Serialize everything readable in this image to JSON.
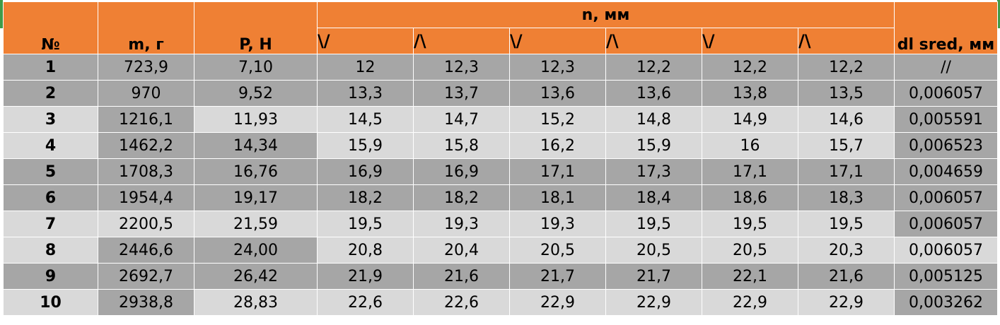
{
  "headers": {
    "no": "№",
    "mass": "m, г",
    "force": "P, Н",
    "group": "n, мм",
    "sub": [
      "\\/",
      "/\\",
      "\\/",
      "/\\",
      "\\/",
      "/\\"
    ],
    "dl": "dl sred, мм"
  },
  "rows": [
    {
      "no": "1",
      "m": "723,9",
      "p": "7,10",
      "n": [
        "12",
        "12,3",
        "12,3",
        "12,2",
        "12,2",
        "12,2"
      ],
      "dl": "//"
    },
    {
      "no": "2",
      "m": "970",
      "p": "9,52",
      "n": [
        "13,3",
        "13,7",
        "13,6",
        "13,6",
        "13,8",
        "13,5"
      ],
      "dl": "0,006057"
    },
    {
      "no": "3",
      "m": "1216,1",
      "p": "11,93",
      "n": [
        "14,5",
        "14,7",
        "15,2",
        "14,8",
        "14,9",
        "14,6"
      ],
      "dl": "0,005591"
    },
    {
      "no": "4",
      "m": "1462,2",
      "p": "14,34",
      "n": [
        "15,9",
        "15,8",
        "16,2",
        "15,9",
        "16",
        "15,7"
      ],
      "dl": "0,006523"
    },
    {
      "no": "5",
      "m": "1708,3",
      "p": "16,76",
      "n": [
        "16,9",
        "16,9",
        "17,1",
        "17,3",
        "17,1",
        "17,1"
      ],
      "dl": "0,004659"
    },
    {
      "no": "6",
      "m": "1954,4",
      "p": "19,17",
      "n": [
        "18,2",
        "18,2",
        "18,1",
        "18,4",
        "18,6",
        "18,3"
      ],
      "dl": "0,006057"
    },
    {
      "no": "7",
      "m": "2200,5",
      "p": "21,59",
      "n": [
        "19,5",
        "19,3",
        "19,3",
        "19,5",
        "19,5",
        "19,5"
      ],
      "dl": "0,006057"
    },
    {
      "no": "8",
      "m": "2446,6",
      "p": "24,00",
      "n": [
        "20,8",
        "20,4",
        "20,5",
        "20,5",
        "20,5",
        "20,3"
      ],
      "dl": "0,006057"
    },
    {
      "no": "9",
      "m": "2692,7",
      "p": "26,42",
      "n": [
        "21,9",
        "21,6",
        "21,7",
        "21,7",
        "22,1",
        "21,6"
      ],
      "dl": "0,005125"
    },
    {
      "no": "10",
      "m": "2938,8",
      "p": "28,83",
      "n": [
        "22,6",
        "22,6",
        "22,9",
        "22,9",
        "22,9",
        "22,9"
      ],
      "dl": "0,003262"
    }
  ],
  "colors": {
    "header": "#ef8034",
    "cell_dark": "#a6a6a6",
    "cell_light": "#d9d9d9",
    "sheet_edge": "#3f9b48"
  }
}
